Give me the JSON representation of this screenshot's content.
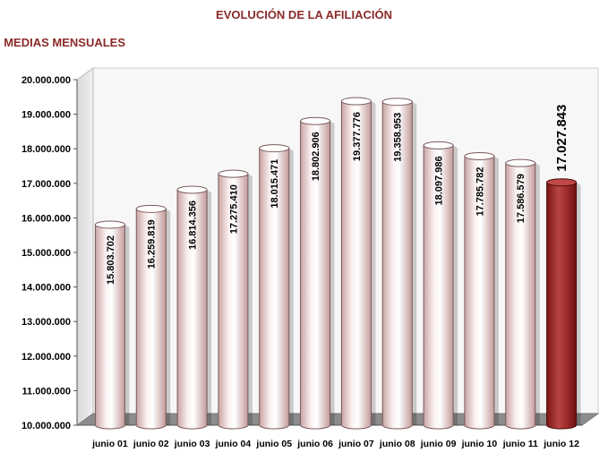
{
  "title": "EVOLUCIÓN DE LA AFILIACIÓN",
  "subtitle": ". MEDIAS MENSUALES",
  "colors": {
    "title": "#8b2a2a",
    "bar": "#f3dede",
    "bar_highlight": "#a32424",
    "floor": "#8c8c8c",
    "wall": "#e6e6e6"
  },
  "chart_data": {
    "type": "bar",
    "categories": [
      "junio 01",
      "junio 02",
      "junio 03",
      "junio 04",
      "junio 05",
      "junio 06",
      "junio 07",
      "junio 08",
      "junio 09",
      "junio 10",
      "junio 11",
      "junio 12"
    ],
    "values": [
      15803702,
      16259819,
      16814356,
      17275410,
      18015471,
      18802906,
      19377776,
      19358953,
      18097986,
      17785782,
      17586579,
      17027843
    ],
    "value_labels": [
      "15.803.702",
      "16.259.819",
      "16.814.356",
      "17.275.410",
      "18.015.471",
      "18.802.906",
      "19.377.776",
      "19.358.953",
      "18.097.986",
      "17.785.782",
      "17.586.579",
      "17.027.843"
    ],
    "highlight_index": 11,
    "ylim": [
      10000000,
      20000000
    ],
    "yticks": [
      10000000,
      11000000,
      12000000,
      13000000,
      14000000,
      15000000,
      16000000,
      17000000,
      18000000,
      19000000,
      20000000
    ],
    "ytick_labels": [
      "10.000.000",
      "11.000.000",
      "12.000.000",
      "13.000.000",
      "14.000.000",
      "15.000.000",
      "16.000.000",
      "17.000.000",
      "18.000.000",
      "19.000.000",
      "20.000.000"
    ],
    "grid": false,
    "legend": "none",
    "bar_style": "3d-cylinder"
  }
}
